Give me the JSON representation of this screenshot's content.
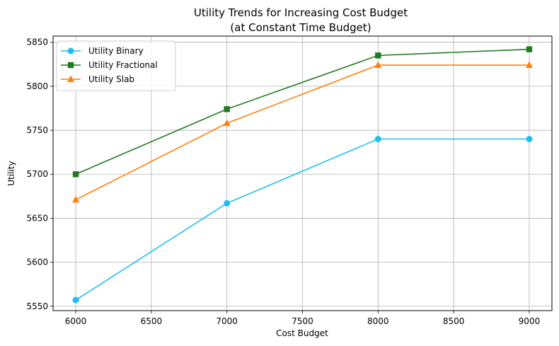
{
  "chart_data": {
    "type": "line",
    "title_line1": "Utility Trends for Increasing Cost Budget",
    "title_line2": "(at Constant Time Budget)",
    "xlabel": "Cost Budget",
    "ylabel": "Utility",
    "x": [
      6000,
      7000,
      8000,
      9000
    ],
    "xlim": [
      5850,
      9150
    ],
    "ylim": [
      5545,
      5857
    ],
    "xticks": [
      6000,
      6500,
      7000,
      7500,
      8000,
      8500,
      9000
    ],
    "yticks": [
      5550,
      5600,
      5650,
      5700,
      5750,
      5800,
      5850
    ],
    "grid": true,
    "legend_position": "top-left",
    "series": [
      {
        "name": "Utility Binary",
        "values": [
          5557,
          5667,
          5740,
          5740
        ],
        "color": "#1ebff0",
        "marker": "circle"
      },
      {
        "name": "Utility Fractional",
        "values": [
          5700,
          5774,
          5835,
          5842
        ],
        "color": "#217a21",
        "marker": "square"
      },
      {
        "name": "Utility Slab",
        "values": [
          5671,
          5758,
          5824,
          5824
        ],
        "color": "#ff7f0e",
        "marker": "triangle"
      }
    ]
  }
}
